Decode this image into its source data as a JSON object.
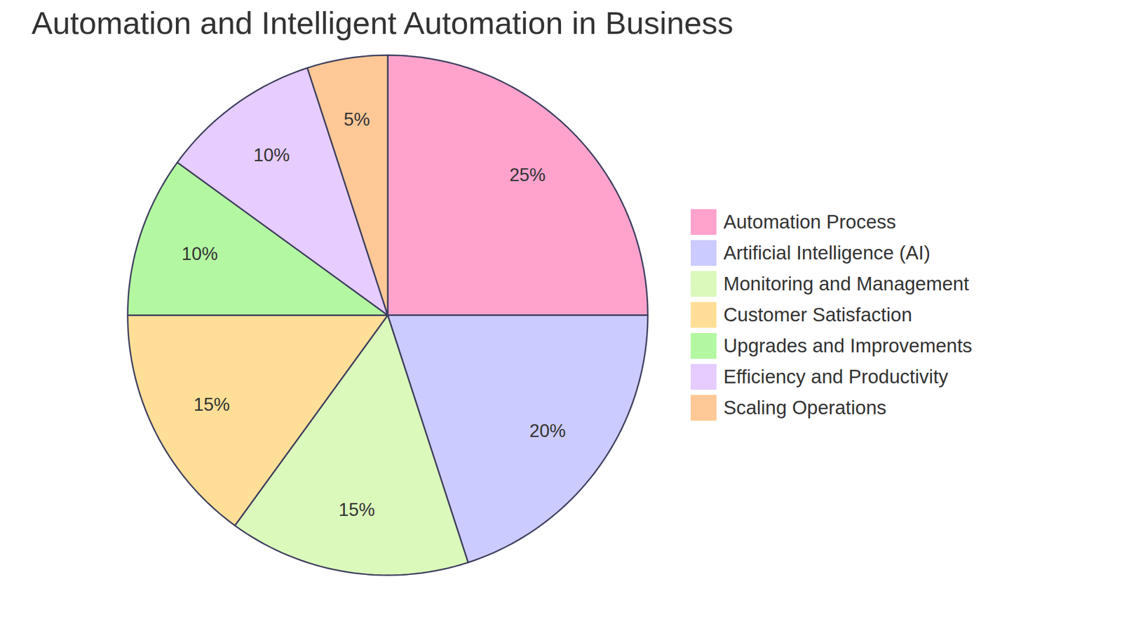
{
  "chart_data": {
    "type": "pie",
    "title": "Automation and Intelligent Automation in Business",
    "categories": [
      "Automation Process",
      "Artificial Intelligence (AI)",
      "Monitoring and Management",
      "Customer Satisfaction",
      "Upgrades and Improvements",
      "Efficiency and Productivity",
      "Scaling Operations"
    ],
    "values": [
      25,
      20,
      15,
      15,
      10,
      10,
      5
    ],
    "value_labels": [
      "25%",
      "20%",
      "15%",
      "15%",
      "10%",
      "10%",
      "5%"
    ],
    "colors": [
      "#ffa3cd",
      "#cbcbff",
      "#dbf9bb",
      "#ffdf97",
      "#b3f8a1",
      "#e6ccff",
      "#ffc896"
    ],
    "data_labels": true,
    "legend": "right"
  }
}
